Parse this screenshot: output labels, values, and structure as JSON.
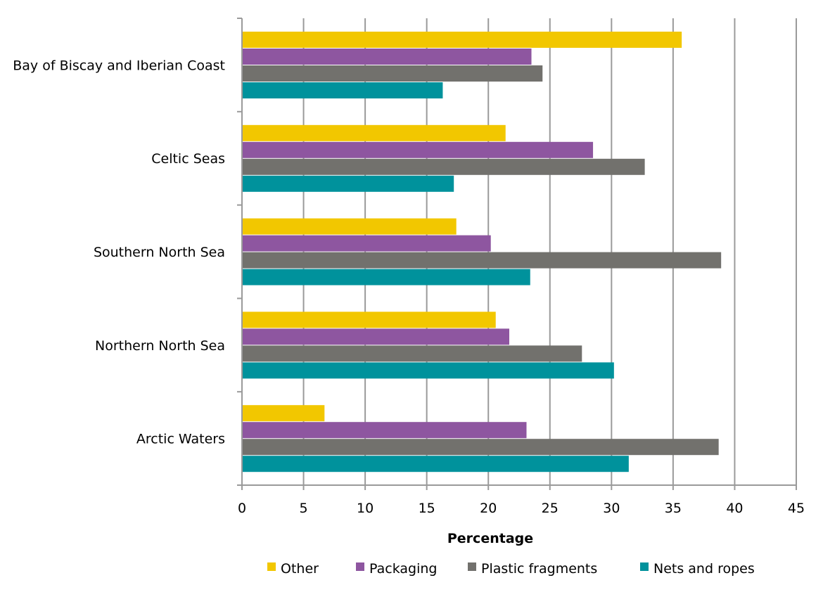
{
  "chart_data": {
    "type": "bar",
    "orientation": "horizontal",
    "categories": [
      "Bay of Biscay and Iberian Coast",
      "Celtic Seas",
      "Southern North Sea",
      "Northern North Sea",
      "Arctic Waters"
    ],
    "series": [
      {
        "name": "Other",
        "color": "#f2c700",
        "values": [
          35.7,
          21.4,
          17.4,
          20.6,
          6.7
        ]
      },
      {
        "name": "Packaging",
        "color": "#8e56a0",
        "values": [
          23.5,
          28.5,
          20.2,
          21.7,
          23.1
        ]
      },
      {
        "name": "Plastic fragments",
        "color": "#72716d",
        "values": [
          24.4,
          32.7,
          38.9,
          27.6,
          38.7
        ]
      },
      {
        "name": "Nets and ropes",
        "color": "#00929c",
        "values": [
          16.3,
          17.2,
          23.4,
          30.2,
          31.4
        ]
      }
    ],
    "xlabel": "Percentage",
    "ylabel": "",
    "xlim": [
      0,
      45
    ],
    "xticks": [
      "0",
      "5",
      "10",
      "15",
      "20",
      "25",
      "30",
      "35",
      "40",
      "45"
    ],
    "grid": true,
    "legend_position": "bottom"
  }
}
